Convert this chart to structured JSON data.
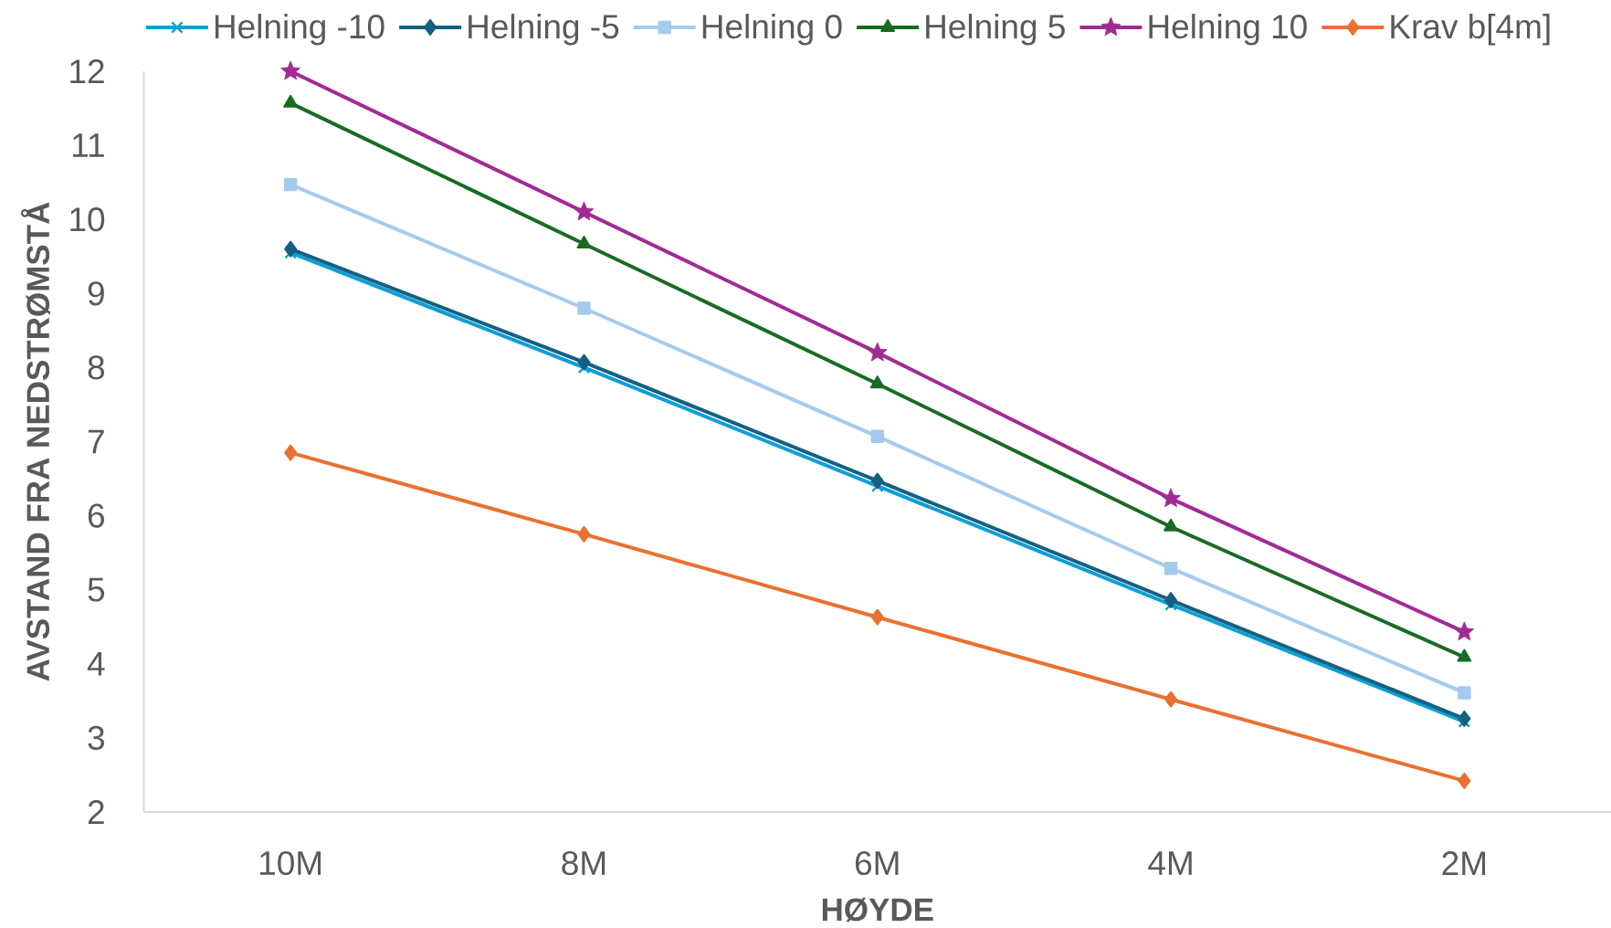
{
  "chart_data": {
    "type": "line",
    "xlabel": "HØYDE",
    "ylabel": "AVSTAND FRA NEDSTRØMSTÅ",
    "categories": [
      "10M",
      "8M",
      "6M",
      "4M",
      "2M"
    ],
    "series": [
      {
        "name": "Helning -10",
        "color": "#0F9ED5",
        "marker": "cross",
        "values": [
          9.55,
          8.0,
          6.4,
          4.8,
          3.22
        ]
      },
      {
        "name": "Helning -5",
        "color": "#156082",
        "marker": "diamond",
        "values": [
          9.6,
          8.07,
          6.47,
          4.86,
          3.26
        ]
      },
      {
        "name": "Helning 0",
        "color": "#A6CAEC",
        "marker": "square",
        "values": [
          10.47,
          8.8,
          7.07,
          5.29,
          3.61
        ]
      },
      {
        "name": "Helning 5",
        "color": "#196B24",
        "marker": "triangle",
        "values": [
          11.57,
          9.67,
          7.78,
          5.85,
          4.09
        ]
      },
      {
        "name": "Helning 10",
        "color": "#A02B93",
        "marker": "star",
        "values": [
          12.0,
          10.1,
          8.2,
          6.23,
          4.43
        ]
      },
      {
        "name": "Krav b[4m]",
        "color": "#E97132",
        "marker": "diamond",
        "values": [
          6.85,
          5.75,
          4.63,
          3.52,
          2.42
        ]
      }
    ],
    "ylim": [
      2,
      12
    ],
    "yticks": [
      2,
      3,
      4,
      5,
      6,
      7,
      8,
      9,
      10,
      11,
      12
    ],
    "legend": "top",
    "line_style": "solid"
  }
}
